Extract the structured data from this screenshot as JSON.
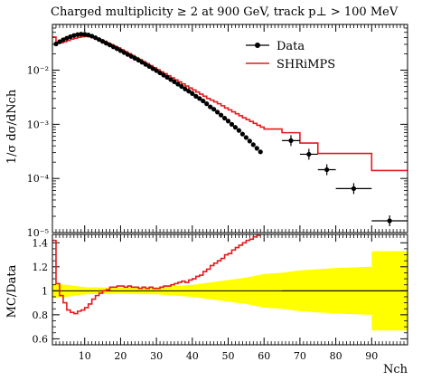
{
  "chart_data": [
    {
      "type": "line",
      "panel": "main",
      "title": "Charged multiplicity ≥ 2 at 900 GeV, track p⊥ > 100 MeV",
      "ylabel": "1/σ dσ/dNch",
      "yscale": "log",
      "ylim": [
        1e-05,
        0.07
      ],
      "xlim": [
        1,
        100
      ],
      "y_tick_labels": [
        "10⁻⁵",
        "10⁻⁴",
        "10⁻³",
        "10⁻²"
      ],
      "legend_position": "top-right",
      "series": [
        {
          "name": "Data",
          "style": "points-with-errorbars",
          "color": "#000000",
          "points": [
            {
              "x": 2,
              "y": 0.0305
            },
            {
              "x": 3,
              "y": 0.0335
            },
            {
              "x": 4,
              "y": 0.0365
            },
            {
              "x": 5,
              "y": 0.039
            },
            {
              "x": 6,
              "y": 0.0415
            },
            {
              "x": 7,
              "y": 0.0438
            },
            {
              "x": 8,
              "y": 0.0455
            },
            {
              "x": 9,
              "y": 0.0463
            },
            {
              "x": 10,
              "y": 0.046
            },
            {
              "x": 11,
              "y": 0.0447
            },
            {
              "x": 12,
              "y": 0.0425
            },
            {
              "x": 13,
              "y": 0.0398
            },
            {
              "x": 14,
              "y": 0.0368
            },
            {
              "x": 15,
              "y": 0.034
            },
            {
              "x": 16,
              "y": 0.0315
            },
            {
              "x": 17,
              "y": 0.0292
            },
            {
              "x": 18,
              "y": 0.027
            },
            {
              "x": 19,
              "y": 0.025
            },
            {
              "x": 20,
              "y": 0.023
            },
            {
              "x": 21,
              "y": 0.0212
            },
            {
              "x": 22,
              "y": 0.0195
            },
            {
              "x": 23,
              "y": 0.018
            },
            {
              "x": 24,
              "y": 0.0166
            },
            {
              "x": 25,
              "y": 0.0153
            },
            {
              "x": 26,
              "y": 0.014
            },
            {
              "x": 27,
              "y": 0.0128
            },
            {
              "x": 28,
              "y": 0.0117
            },
            {
              "x": 29,
              "y": 0.0107
            },
            {
              "x": 30,
              "y": 0.0098
            },
            {
              "x": 31,
              "y": 0.0089
            },
            {
              "x": 32,
              "y": 0.0081
            },
            {
              "x": 33,
              "y": 0.0074
            },
            {
              "x": 34,
              "y": 0.0067
            },
            {
              "x": 35,
              "y": 0.0061
            },
            {
              "x": 36,
              "y": 0.0055
            },
            {
              "x": 37,
              "y": 0.005
            },
            {
              "x": 38,
              "y": 0.0045
            },
            {
              "x": 39,
              "y": 0.0041
            },
            {
              "x": 40,
              "y": 0.0037
            },
            {
              "x": 41,
              "y": 0.0033
            },
            {
              "x": 42,
              "y": 0.003
            },
            {
              "x": 43,
              "y": 0.0027
            },
            {
              "x": 44,
              "y": 0.0024
            },
            {
              "x": 45,
              "y": 0.0021
            },
            {
              "x": 46,
              "y": 0.0019
            },
            {
              "x": 47,
              "y": 0.00168
            },
            {
              "x": 48,
              "y": 0.00148
            },
            {
              "x": 49,
              "y": 0.0013
            },
            {
              "x": 50,
              "y": 0.00115
            },
            {
              "x": 51,
              "y": 0.001
            },
            {
              "x": 52,
              "y": 0.00088
            },
            {
              "x": 53,
              "y": 0.00077
            },
            {
              "x": 54,
              "y": 0.00066
            },
            {
              "x": 55,
              "y": 0.00057
            },
            {
              "x": 56,
              "y": 0.00049
            },
            {
              "x": 57,
              "y": 0.00042
            },
            {
              "x": 58,
              "y": 0.00036
            },
            {
              "x": 59,
              "y": 0.00031
            },
            {
              "x": 67.5,
              "y": 0.0005,
              "xerr": 2.5
            },
            {
              "x": 72.5,
              "y": 0.00028,
              "xerr": 2.5
            },
            {
              "x": 77.5,
              "y": 0.000145,
              "xerr": 2.5
            },
            {
              "x": 85,
              "y": 6.5e-05,
              "xerr": 5
            },
            {
              "x": 95,
              "y": 1.65e-05,
              "xerr": 5
            }
          ]
        },
        {
          "name": "SHRiMPS",
          "style": "histogram",
          "color": "#e41a1c",
          "bins": [
            {
              "x": 1,
              "y": 0.041
            },
            {
              "x": 2,
              "y": 0.0325
            },
            {
              "x": 3,
              "y": 0.032
            },
            {
              "x": 4,
              "y": 0.0335
            },
            {
              "x": 5,
              "y": 0.0355
            },
            {
              "x": 6,
              "y": 0.0375
            },
            {
              "x": 7,
              "y": 0.039
            },
            {
              "x": 8,
              "y": 0.0405
            },
            {
              "x": 9,
              "y": 0.0415
            },
            {
              "x": 10,
              "y": 0.042
            },
            {
              "x": 11,
              "y": 0.0418
            },
            {
              "x": 12,
              "y": 0.0408
            },
            {
              "x": 13,
              "y": 0.0388
            },
            {
              "x": 14,
              "y": 0.0365
            },
            {
              "x": 15,
              "y": 0.0342
            },
            {
              "x": 16,
              "y": 0.0318
            },
            {
              "x": 17,
              "y": 0.0297
            },
            {
              "x": 18,
              "y": 0.0276
            },
            {
              "x": 19,
              "y": 0.0258
            },
            {
              "x": 20,
              "y": 0.0238
            },
            {
              "x": 21,
              "y": 0.0219
            },
            {
              "x": 22,
              "y": 0.0202
            },
            {
              "x": 23,
              "y": 0.0186
            },
            {
              "x": 24,
              "y": 0.0171
            },
            {
              "x": 25,
              "y": 0.0157
            },
            {
              "x": 26,
              "y": 0.0144
            },
            {
              "x": 27,
              "y": 0.0132
            },
            {
              "x": 28,
              "y": 0.0121
            },
            {
              "x": 29,
              "y": 0.0111
            },
            {
              "x": 30,
              "y": 0.0102
            },
            {
              "x": 31,
              "y": 0.0093
            },
            {
              "x": 32,
              "y": 0.0086
            },
            {
              "x": 33,
              "y": 0.0079
            },
            {
              "x": 34,
              "y": 0.0072
            },
            {
              "x": 35,
              "y": 0.0066
            },
            {
              "x": 36,
              "y": 0.0061
            },
            {
              "x": 37,
              "y": 0.0056
            },
            {
              "x": 38,
              "y": 0.0051
            },
            {
              "x": 39,
              "y": 0.0047
            },
            {
              "x": 40,
              "y": 0.0043
            },
            {
              "x": 41,
              "y": 0.00395
            },
            {
              "x": 42,
              "y": 0.0036
            },
            {
              "x": 43,
              "y": 0.0033
            },
            {
              "x": 44,
              "y": 0.003
            },
            {
              "x": 45,
              "y": 0.0028
            },
            {
              "x": 46,
              "y": 0.0026
            },
            {
              "x": 47,
              "y": 0.0024
            },
            {
              "x": 48,
              "y": 0.0022
            },
            {
              "x": 49,
              "y": 0.002
            },
            {
              "x": 50,
              "y": 0.00185
            },
            {
              "x": 51,
              "y": 0.0017
            },
            {
              "x": 52,
              "y": 0.00157
            },
            {
              "x": 53,
              "y": 0.00144
            },
            {
              "x": 54,
              "y": 0.00132
            },
            {
              "x": 55,
              "y": 0.00122
            },
            {
              "x": 56,
              "y": 0.00113
            },
            {
              "x": 57,
              "y": 0.00104
            },
            {
              "x": 58,
              "y": 0.00096
            },
            {
              "x": 59,
              "y": 0.00089
            },
            {
              "x": 60,
              "y": 0.00082
            },
            {
              "x": 65,
              "y": 0.0007
            },
            {
              "x": 70,
              "y": 0.00045
            },
            {
              "x": 75,
              "y": 0.00029
            },
            {
              "x": 80,
              "y": 0.00029
            },
            {
              "x": 90,
              "y": 0.00014
            }
          ],
          "last_edge": 100
        }
      ]
    },
    {
      "type": "line",
      "panel": "ratio",
      "ylabel": "MC/Data",
      "xlabel": "Nch",
      "ylim": [
        0.55,
        1.47
      ],
      "xlim": [
        1,
        100
      ],
      "y_ticks": [
        0.6,
        0.8,
        1,
        1.2,
        1.4
      ],
      "y_tick_labels": [
        "0.6",
        "0.8",
        "1",
        "1.2",
        "1.4"
      ],
      "x_ticks": [
        10,
        20,
        30,
        40,
        50,
        60,
        70,
        80,
        90
      ],
      "x_tick_labels": [
        "10",
        "20",
        "30",
        "40",
        "50",
        "60",
        "70",
        "80",
        "90"
      ],
      "reference_line": 1,
      "uncertainty_band": {
        "color": "#ffff00",
        "x": [
          1,
          5,
          10,
          20,
          30,
          40,
          50,
          55,
          60,
          65,
          70,
          75,
          80,
          90,
          90,
          100
        ],
        "half_width": [
          0.06,
          0.05,
          0.03,
          0.025,
          0.03,
          0.05,
          0.09,
          0.11,
          0.14,
          0.15,
          0.17,
          0.18,
          0.19,
          0.2,
          0.33,
          0.33
        ]
      },
      "series": [
        {
          "name": "SHRiMPS",
          "style": "histogram",
          "color": "#e41a1c",
          "bins": [
            {
              "x": 1,
              "y": 1.42
            },
            {
              "x": 2,
              "y": 1.06
            },
            {
              "x": 3,
              "y": 0.96
            },
            {
              "x": 4,
              "y": 0.9
            },
            {
              "x": 5,
              "y": 0.84
            },
            {
              "x": 6,
              "y": 0.82
            },
            {
              "x": 7,
              "y": 0.81
            },
            {
              "x": 8,
              "y": 0.83
            },
            {
              "x": 9,
              "y": 0.84
            },
            {
              "x": 10,
              "y": 0.86
            },
            {
              "x": 11,
              "y": 0.89
            },
            {
              "x": 12,
              "y": 0.93
            },
            {
              "x": 13,
              "y": 0.96
            },
            {
              "x": 14,
              "y": 0.98
            },
            {
              "x": 15,
              "y": 1.0
            },
            {
              "x": 16,
              "y": 1.01
            },
            {
              "x": 17,
              "y": 1.03
            },
            {
              "x": 18,
              "y": 1.03
            },
            {
              "x": 19,
              "y": 1.04
            },
            {
              "x": 20,
              "y": 1.04
            },
            {
              "x": 21,
              "y": 1.03
            },
            {
              "x": 22,
              "y": 1.04
            },
            {
              "x": 23,
              "y": 1.03
            },
            {
              "x": 24,
              "y": 1.03
            },
            {
              "x": 25,
              "y": 1.02
            },
            {
              "x": 26,
              "y": 1.03
            },
            {
              "x": 27,
              "y": 1.02
            },
            {
              "x": 28,
              "y": 1.03
            },
            {
              "x": 29,
              "y": 1.02
            },
            {
              "x": 30,
              "y": 1.02
            },
            {
              "x": 31,
              "y": 1.03
            },
            {
              "x": 32,
              "y": 1.04
            },
            {
              "x": 33,
              "y": 1.04
            },
            {
              "x": 34,
              "y": 1.05
            },
            {
              "x": 35,
              "y": 1.06
            },
            {
              "x": 36,
              "y": 1.07
            },
            {
              "x": 37,
              "y": 1.08
            },
            {
              "x": 38,
              "y": 1.07
            },
            {
              "x": 39,
              "y": 1.09
            },
            {
              "x": 40,
              "y": 1.1
            },
            {
              "x": 41,
              "y": 1.12
            },
            {
              "x": 42,
              "y": 1.13
            },
            {
              "x": 43,
              "y": 1.16
            },
            {
              "x": 44,
              "y": 1.18
            },
            {
              "x": 45,
              "y": 1.21
            },
            {
              "x": 46,
              "y": 1.23
            },
            {
              "x": 47,
              "y": 1.25
            },
            {
              "x": 48,
              "y": 1.27
            },
            {
              "x": 49,
              "y": 1.3
            },
            {
              "x": 50,
              "y": 1.31
            },
            {
              "x": 51,
              "y": 1.34
            },
            {
              "x": 52,
              "y": 1.36
            },
            {
              "x": 53,
              "y": 1.38
            },
            {
              "x": 54,
              "y": 1.4
            },
            {
              "x": 55,
              "y": 1.42
            },
            {
              "x": 56,
              "y": 1.43
            },
            {
              "x": 57,
              "y": 1.45
            },
            {
              "x": 58,
              "y": 1.47
            }
          ],
          "last_edge": 59
        }
      ]
    }
  ]
}
